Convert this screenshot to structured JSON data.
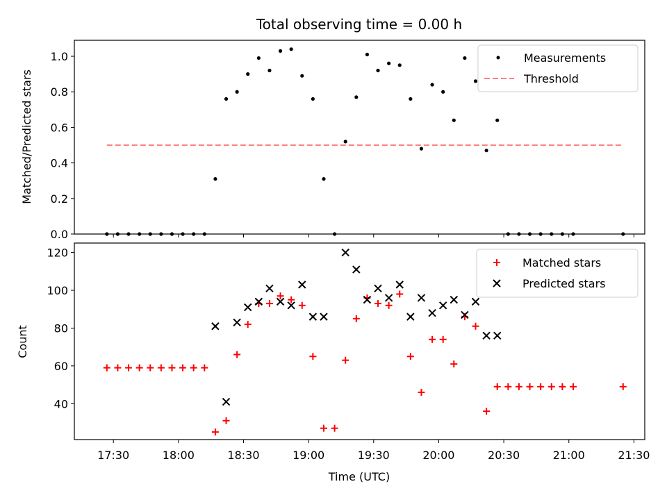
{
  "title": "Total observing time = 0.00 h",
  "colors": {
    "measure": "#000000",
    "threshold": "#ff7f7f",
    "matched": "#ff0000",
    "predicted": "#000000"
  },
  "chart_data": [
    {
      "type": "scatter",
      "ylabel": "Matched/Predicted stars",
      "ylim": [
        0,
        1.09
      ],
      "yticks": [
        0.0,
        0.2,
        0.4,
        0.6,
        0.8,
        1.0
      ],
      "ytick_labels": [
        "0.0",
        "0.2",
        "0.4",
        "0.6",
        "0.8",
        "1.0"
      ],
      "xlim": [
        "17:12",
        "21:35"
      ],
      "legend": {
        "placement": "top-right",
        "entries": [
          "Measurements",
          "Threshold"
        ]
      },
      "series": [
        {
          "name": "Measurements",
          "marker": "dot",
          "points": [
            [
              "17:27",
              0
            ],
            [
              "17:32",
              0
            ],
            [
              "17:37",
              0
            ],
            [
              "17:42",
              0
            ],
            [
              "17:47",
              0
            ],
            [
              "17:52",
              0
            ],
            [
              "17:57",
              0
            ],
            [
              "18:02",
              0
            ],
            [
              "18:07",
              0
            ],
            [
              "18:12",
              0
            ],
            [
              "18:17",
              0.31
            ],
            [
              "18:22",
              0.76
            ],
            [
              "18:27",
              0.8
            ],
            [
              "18:32",
              0.9
            ],
            [
              "18:37",
              0.99
            ],
            [
              "18:42",
              0.92
            ],
            [
              "18:47",
              1.03
            ],
            [
              "18:52",
              1.04
            ],
            [
              "18:57",
              0.89
            ],
            [
              "19:02",
              0.76
            ],
            [
              "19:07",
              0.31
            ],
            [
              "19:12",
              0
            ],
            [
              "19:17",
              0.52
            ],
            [
              "19:22",
              0.77
            ],
            [
              "19:27",
              1.01
            ],
            [
              "19:32",
              0.92
            ],
            [
              "19:37",
              0.96
            ],
            [
              "19:42",
              0.95
            ],
            [
              "19:47",
              0.76
            ],
            [
              "19:52",
              0.48
            ],
            [
              "19:57",
              0.84
            ],
            [
              "20:02",
              0.8
            ],
            [
              "20:07",
              0.64
            ],
            [
              "20:12",
              0.99
            ],
            [
              "20:17",
              0.86
            ],
            [
              "20:22",
              0.47
            ],
            [
              "20:27",
              0.64
            ],
            [
              "20:32",
              0
            ],
            [
              "20:37",
              0
            ],
            [
              "20:42",
              0
            ],
            [
              "20:47",
              0
            ],
            [
              "20:52",
              0
            ],
            [
              "20:57",
              0
            ],
            [
              "21:02",
              0
            ],
            [
              "21:25",
              0
            ]
          ]
        },
        {
          "name": "Threshold",
          "style": "dashed",
          "x": [
            "17:27",
            "21:25"
          ],
          "y": [
            0.5,
            0.5
          ]
        }
      ]
    },
    {
      "type": "scatter",
      "ylabel": "Count",
      "xlabel": "Time (UTC)",
      "ylim": [
        21,
        125
      ],
      "yticks": [
        40,
        60,
        80,
        100,
        120
      ],
      "xticks": [
        "17:30",
        "18:00",
        "18:30",
        "19:00",
        "19:30",
        "20:00",
        "20:30",
        "21:00",
        "21:30"
      ],
      "xlim": [
        "17:12",
        "21:35"
      ],
      "legend": {
        "placement": "top-right",
        "entries": [
          "Matched stars",
          "Predicted stars"
        ]
      },
      "series": [
        {
          "name": "Matched stars",
          "marker": "plus",
          "points": [
            [
              "17:27",
              59
            ],
            [
              "17:32",
              59
            ],
            [
              "17:37",
              59
            ],
            [
              "17:42",
              59
            ],
            [
              "17:47",
              59
            ],
            [
              "17:52",
              59
            ],
            [
              "17:57",
              59
            ],
            [
              "18:02",
              59
            ],
            [
              "18:07",
              59
            ],
            [
              "18:12",
              59
            ],
            [
              "18:17",
              25
            ],
            [
              "18:22",
              31
            ],
            [
              "18:27",
              66
            ],
            [
              "18:32",
              82
            ],
            [
              "18:37",
              93
            ],
            [
              "18:42",
              93
            ],
            [
              "18:47",
              97
            ],
            [
              "18:52",
              95
            ],
            [
              "18:57",
              92
            ],
            [
              "19:02",
              65
            ],
            [
              "19:07",
              27
            ],
            [
              "19:12",
              27
            ],
            [
              "19:17",
              63
            ],
            [
              "19:22",
              85
            ],
            [
              "19:27",
              96
            ],
            [
              "19:32",
              93
            ],
            [
              "19:37",
              92
            ],
            [
              "19:42",
              98
            ],
            [
              "19:47",
              65
            ],
            [
              "19:52",
              46
            ],
            [
              "19:57",
              74
            ],
            [
              "20:02",
              74
            ],
            [
              "20:07",
              61
            ],
            [
              "20:12",
              86
            ],
            [
              "20:17",
              81
            ],
            [
              "20:22",
              36
            ],
            [
              "20:27",
              49
            ],
            [
              "20:32",
              49
            ],
            [
              "20:37",
              49
            ],
            [
              "20:42",
              49
            ],
            [
              "20:47",
              49
            ],
            [
              "20:52",
              49
            ],
            [
              "20:57",
              49
            ],
            [
              "21:02",
              49
            ],
            [
              "21:25",
              49
            ]
          ]
        },
        {
          "name": "Predicted stars",
          "marker": "x",
          "points": [
            [
              "18:17",
              81
            ],
            [
              "18:22",
              41
            ],
            [
              "18:27",
              83
            ],
            [
              "18:32",
              91
            ],
            [
              "18:37",
              94
            ],
            [
              "18:42",
              101
            ],
            [
              "18:47",
              94
            ],
            [
              "18:52",
              92
            ],
            [
              "18:57",
              103
            ],
            [
              "19:02",
              86
            ],
            [
              "19:07",
              86
            ],
            [
              "19:17",
              120
            ],
            [
              "19:22",
              111
            ],
            [
              "19:27",
              95
            ],
            [
              "19:32",
              101
            ],
            [
              "19:37",
              96
            ],
            [
              "19:42",
              103
            ],
            [
              "19:47",
              86
            ],
            [
              "19:52",
              96
            ],
            [
              "19:57",
              88
            ],
            [
              "20:02",
              92
            ],
            [
              "20:07",
              95
            ],
            [
              "20:12",
              87
            ],
            [
              "20:17",
              94
            ],
            [
              "20:22",
              76
            ],
            [
              "20:27",
              76
            ]
          ]
        }
      ]
    }
  ]
}
